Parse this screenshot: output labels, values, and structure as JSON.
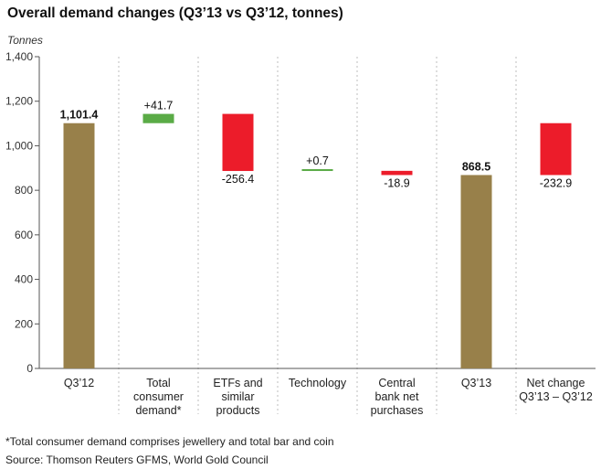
{
  "chart_data": {
    "type": "bar",
    "subtype": "waterfall",
    "title": "Overall demand changes (Q3’13 vs Q3’12, tonnes)",
    "ylabel": "Tonnes",
    "ylim": [
      0,
      1400
    ],
    "yticks": [
      0,
      200,
      400,
      600,
      800,
      1000,
      1200,
      1400
    ],
    "ytick_labels": [
      "0",
      "200",
      "400",
      "600",
      "800",
      "1,000",
      "1,200",
      "1,400"
    ],
    "grid": "vertical-dashed-separators",
    "categories": [
      [
        "Q3’12"
      ],
      [
        "Total",
        "consumer",
        "demand*"
      ],
      [
        "ETFs and",
        "similar",
        "products"
      ],
      [
        "Technology"
      ],
      [
        "Central",
        "bank net",
        "purchases"
      ],
      [
        "Q3’13"
      ],
      [
        "Net change",
        "Q3’13 – Q3’12"
      ]
    ],
    "bars": [
      {
        "kind": "total",
        "start": 0,
        "end": 1101.4,
        "label": "1,101.4",
        "bold": true
      },
      {
        "kind": "increase",
        "start": 1101.4,
        "end": 1143.1,
        "label": "+41.7",
        "bold": false
      },
      {
        "kind": "decrease",
        "start": 1143.1,
        "end": 886.7,
        "label": "-256.4",
        "bold": false
      },
      {
        "kind": "increase",
        "start": 886.7,
        "end": 887.4,
        "label": "+0.7",
        "bold": false
      },
      {
        "kind": "decrease",
        "start": 887.4,
        "end": 868.5,
        "label": "-18.9",
        "bold": false
      },
      {
        "kind": "total",
        "start": 0,
        "end": 868.5,
        "label": "868.5",
        "bold": true
      },
      {
        "kind": "decrease",
        "start": 1101.4,
        "end": 868.5,
        "label": "-232.9",
        "bold": false
      }
    ],
    "colors": {
      "total": "#98804a",
      "increase": "#5aab46",
      "decrease": "#ec1c2a"
    }
  },
  "footnote": "*Total consumer demand comprises jewellery and total bar and coin",
  "source": "Source: Thomson Reuters GFMS, World Gold Council"
}
